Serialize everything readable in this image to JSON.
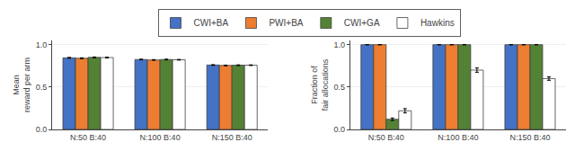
{
  "chart_data": [
    {
      "type": "bar",
      "categories": [
        "N:50 B:40",
        "N:100 B:40",
        "N:150 B:40"
      ],
      "ylabel": "Mean\nreward per arm",
      "ylim": [
        0.0,
        1.05
      ],
      "yticks": [
        {
          "value": 0.0,
          "label": "0.0"
        },
        0.5,
        {
          "value": 1.0,
          "label": "1.0"
        }
      ],
      "grid": true,
      "legend": "top",
      "series": [
        {
          "name": "CWI+BA",
          "color": "#4472c4",
          "values": [
            0.845,
            0.825,
            0.76
          ],
          "errors": [
            0.005,
            0.004,
            0.004
          ]
        },
        {
          "name": "PWI+BA",
          "color": "#ed7d31",
          "values": [
            0.84,
            0.82,
            0.755
          ],
          "errors": [
            0.005,
            0.004,
            0.004
          ]
        },
        {
          "name": "CWI+GA",
          "color": "#548235",
          "values": [
            0.85,
            0.825,
            0.758
          ],
          "errors": [
            0.005,
            0.004,
            0.004
          ]
        },
        {
          "name": "Hawkins",
          "color": "#ffffff",
          "values": [
            0.848,
            0.822,
            0.758
          ],
          "errors": [
            0.005,
            0.004,
            0.004
          ]
        }
      ]
    },
    {
      "type": "bar",
      "categories": [
        "N:50 B:40",
        "N:100 B:40",
        "N:150 B:40"
      ],
      "ylabel": "Fraction of\nfair allocations",
      "ylim": [
        0.0,
        1.05
      ],
      "yticks": [
        {
          "value": 0.0,
          "label": "0.0"
        },
        0.5,
        {
          "value": 1.0,
          "label": "1.0"
        }
      ],
      "grid": true,
      "series": [
        {
          "name": "CWI+BA",
          "color": "#4472c4",
          "values": [
            1.0,
            1.0,
            1.0
          ],
          "errors": [
            0.0,
            0.0,
            0.0
          ]
        },
        {
          "name": "PWI+BA",
          "color": "#ed7d31",
          "values": [
            1.0,
            1.0,
            1.0
          ],
          "errors": [
            0.0,
            0.0,
            0.0
          ]
        },
        {
          "name": "CWI+GA",
          "color": "#548235",
          "values": [
            0.12,
            1.0,
            1.0
          ],
          "errors": [
            0.015,
            0.0,
            0.0
          ]
        },
        {
          "name": "Hawkins",
          "color": "#ffffff",
          "values": [
            0.22,
            0.7,
            0.6
          ],
          "errors": [
            0.025,
            0.025,
            0.02
          ]
        }
      ]
    }
  ]
}
